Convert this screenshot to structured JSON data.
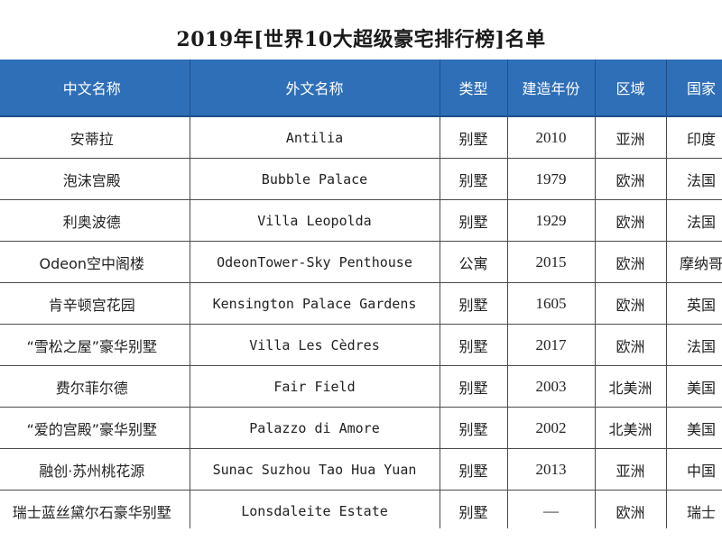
{
  "title": "2019年[世界10大超级豪宅排行榜]名单",
  "table": {
    "headers": [
      "中文名称",
      "外文名称",
      "类型",
      "建造年份",
      "区域",
      "国家"
    ],
    "rows": [
      [
        "安蒂拉",
        "Antilia",
        "别墅",
        "2010",
        "亚洲",
        "印度"
      ],
      [
        "泡沫宫殿",
        "Bubble Palace",
        "别墅",
        "1979",
        "欧洲",
        "法国"
      ],
      [
        "利奥波德",
        "Villa Leopolda",
        "别墅",
        "1929",
        "欧洲",
        "法国"
      ],
      [
        "Odeon空中阁楼",
        "OdeonTower-Sky Penthouse",
        "公寓",
        "2015",
        "欧洲",
        "摩纳哥"
      ],
      [
        "肯辛顿宫花园",
        "Kensington Palace Gardens",
        "别墅",
        "1605",
        "欧洲",
        "英国"
      ],
      [
        "“雪松之屋”豪华别墅",
        "Villa Les Cèdres",
        "别墅",
        "2017",
        "欧洲",
        "法国"
      ],
      [
        "费尔菲尔德",
        "Fair Field",
        "别墅",
        "2003",
        "北美洲",
        "美国"
      ],
      [
        "“爱的宫殿”豪华别墅",
        "Palazzo di Amore",
        "别墅",
        "2002",
        "北美洲",
        "美国"
      ],
      [
        "融创·苏州桃花源",
        "Sunac Suzhou Tao Hua Yuan",
        "别墅",
        "2013",
        "亚洲",
        "中国"
      ],
      [
        "瑞士蓝丝黛尔石豪华别墅",
        "Lonsdaleite Estate",
        "别墅",
        "—",
        "欧洲",
        "瑞士"
      ]
    ]
  },
  "colors": {
    "header_bg": "#2f6fb8",
    "header_text": "#ffffff",
    "grid_line": "#4a4a4a"
  }
}
